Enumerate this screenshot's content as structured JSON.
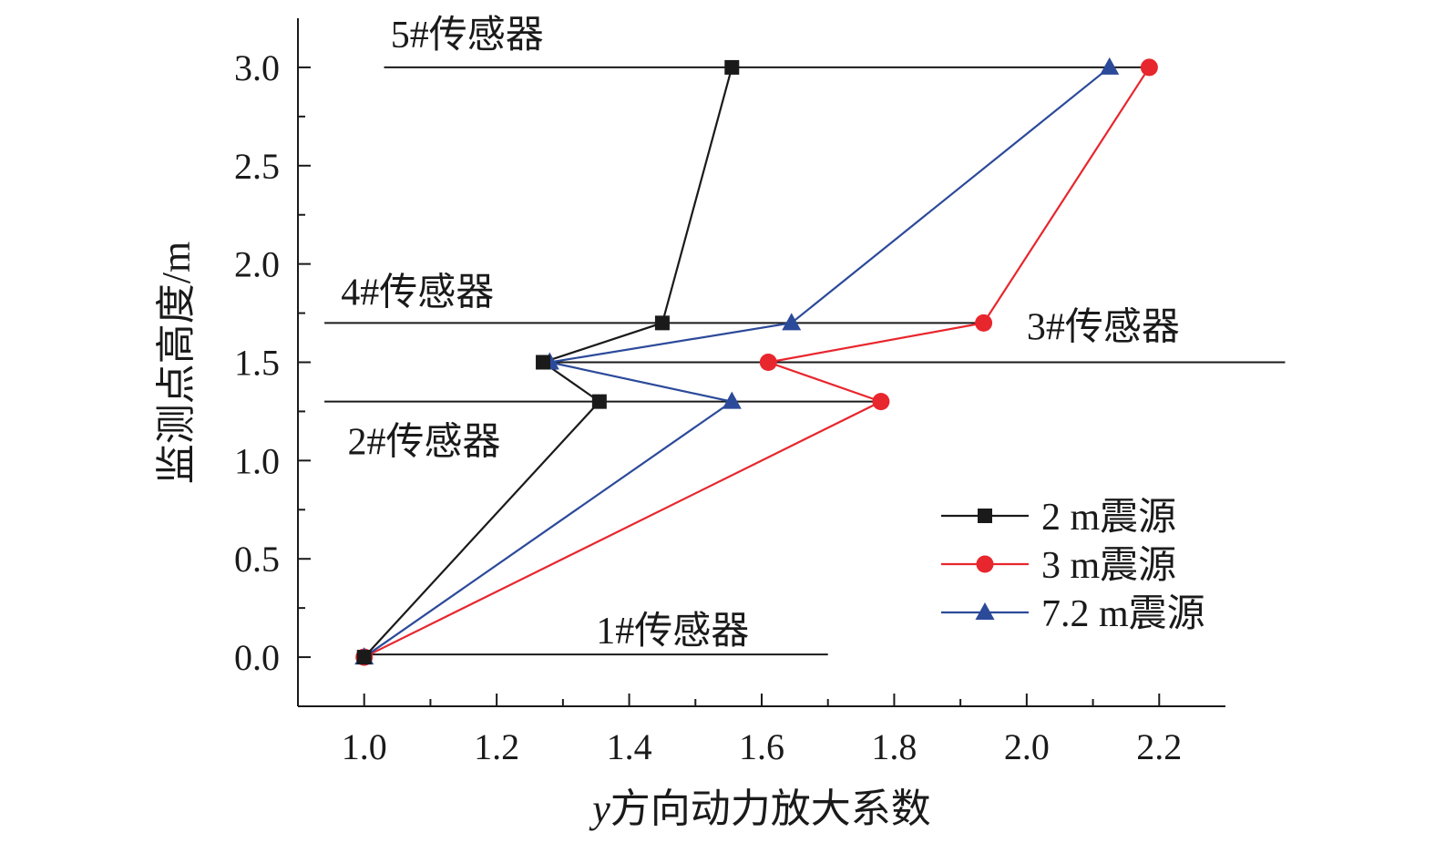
{
  "chart_data": {
    "type": "line",
    "xlabel_italic": "y",
    "xlabel_rest": "方向动力放大系数",
    "ylabel": "监测点高度/m",
    "xlim": [
      0.9,
      2.3
    ],
    "ylim": [
      -0.25,
      3.25
    ],
    "xticks": [
      1.0,
      1.2,
      1.4,
      1.6,
      1.8,
      2.0,
      2.2
    ],
    "xtick_labels": [
      "1.0",
      "1.2",
      "1.4",
      "1.6",
      "1.8",
      "2.0",
      "2.2"
    ],
    "yticks": [
      0.0,
      0.5,
      1.0,
      1.5,
      2.0,
      2.5,
      3.0
    ],
    "ytick_labels": [
      "0.0",
      "0.5",
      "1.0",
      "1.5",
      "2.0",
      "2.5",
      "3.0"
    ],
    "series": [
      {
        "name": "2 m震源",
        "color": "#1a1a1a",
        "marker": "square",
        "x": [
          1.0,
          1.355,
          1.27,
          1.45,
          1.555
        ],
        "y": [
          0.0,
          1.3,
          1.5,
          1.7,
          3.0
        ]
      },
      {
        "name": "3 m震源",
        "color": "#e8262d",
        "marker": "circle",
        "x": [
          1.0,
          1.78,
          1.61,
          1.935,
          2.185
        ],
        "y": [
          0.0,
          1.3,
          1.5,
          1.7,
          3.0
        ]
      },
      {
        "name": "7.2 m震源",
        "color": "#2c4a9a",
        "marker": "triangle",
        "x": [
          1.0,
          1.555,
          1.28,
          1.645,
          2.125
        ],
        "y": [
          0.0,
          1.3,
          1.5,
          1.7,
          3.0
        ]
      }
    ],
    "sensors": [
      {
        "label": "1#传感器",
        "height": 0.0,
        "x_from": 1.0,
        "x_to": 1.7
      },
      {
        "label": "2#传感器",
        "height": 1.3,
        "x_from": 0.94,
        "x_to": 1.79
      },
      {
        "label": "3#传感器",
        "height": 1.5,
        "x_from": 1.27,
        "x_to": 2.39
      },
      {
        "label": "4#传感器",
        "height": 1.7,
        "x_from": 0.94,
        "x_to": 1.935
      },
      {
        "label": "5#传感器",
        "height": 3.0,
        "x_from": 1.03,
        "x_to": 2.185
      }
    ],
    "legend_position": "lower-right",
    "grid": false
  }
}
